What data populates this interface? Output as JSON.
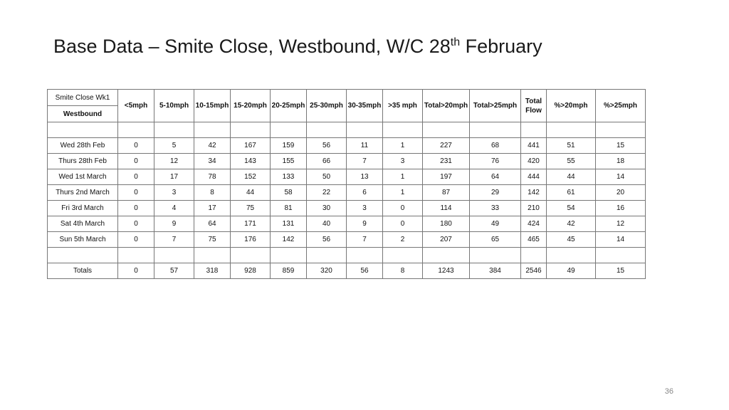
{
  "title": {
    "pre": "Base Data – Smite Close, Westbound, W/C 28",
    "sup": "th",
    "post": " February"
  },
  "table": {
    "corner_top": "Smite Close Wk1",
    "corner_bottom": "Westbound",
    "headers": [
      "<5mph",
      "5-10mph",
      "10-15mph",
      "15-20mph",
      "20-25mph",
      "25-30mph",
      "30-35mph",
      ">35 mph",
      "Total>20mph",
      "Total>25mph",
      "Total Flow",
      "%>20mph",
      "%>25mph"
    ],
    "rows": [
      {
        "label": "Wed 28th Feb",
        "values": [
          "0",
          "5",
          "42",
          "167",
          "159",
          "56",
          "11",
          "1",
          "227",
          "68",
          "441",
          "51",
          "15"
        ]
      },
      {
        "label": "Thurs  28th Feb",
        "values": [
          "0",
          "12",
          "34",
          "143",
          "155",
          "66",
          "7",
          "3",
          "231",
          "76",
          "420",
          "55",
          "18"
        ]
      },
      {
        "label": "Wed  1st March",
        "values": [
          "0",
          "17",
          "78",
          "152",
          "133",
          "50",
          "13",
          "1",
          "197",
          "64",
          "444",
          "44",
          "14"
        ]
      },
      {
        "label": "Thurs 2nd March",
        "values": [
          "0",
          "3",
          "8",
          "44",
          "58",
          "22",
          "6",
          "1",
          "87",
          "29",
          "142",
          "61",
          "20"
        ]
      },
      {
        "label": "Fri 3rd March",
        "values": [
          "0",
          "4",
          "17",
          "75",
          "81",
          "30",
          "3",
          "0",
          "114",
          "33",
          "210",
          "54",
          "16"
        ]
      },
      {
        "label": "Sat 4th March",
        "values": [
          "0",
          "9",
          "64",
          "171",
          "131",
          "40",
          "9",
          "0",
          "180",
          "49",
          "424",
          "42",
          "12"
        ]
      },
      {
        "label": "Sun  5th March",
        "values": [
          "0",
          "7",
          "75",
          "176",
          "142",
          "56",
          "7",
          "2",
          "207",
          "65",
          "465",
          "45",
          "14"
        ]
      }
    ],
    "totals": {
      "label": "Totals",
      "values": [
        "0",
        "57",
        "318",
        "928",
        "859",
        "320",
        "56",
        "8",
        "1243",
        "384",
        "2546",
        "49",
        "15"
      ]
    }
  },
  "page_number": "36"
}
